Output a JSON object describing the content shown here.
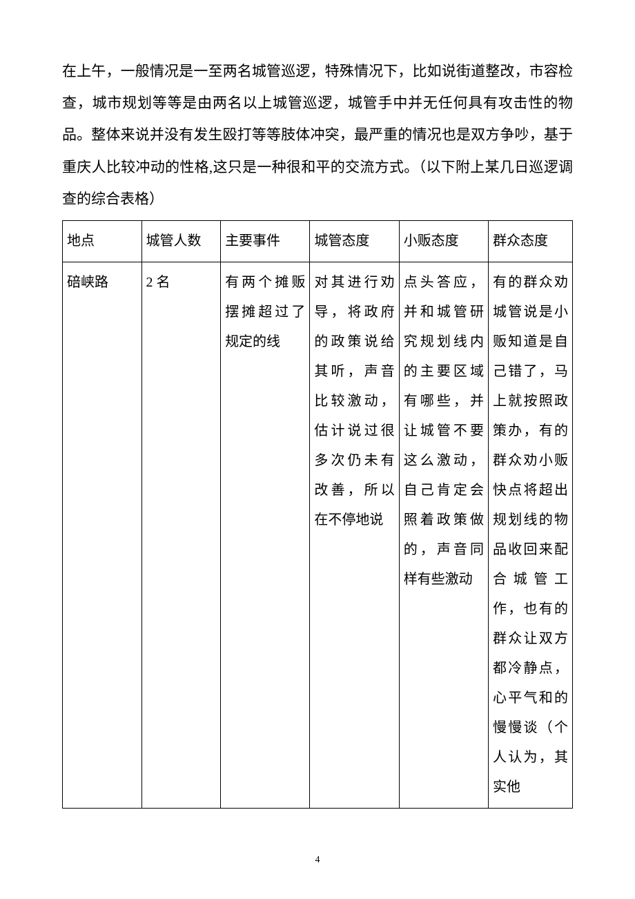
{
  "paragraph": "在上午，一般情况是一至两名城管巡逻，特殊情况下，比如说街道整改，市容检查，城市规划等等是由两名以上城管巡逻，城管手中并无任何具有攻击性的物品。整体来说并没有发生殴打等等肢体冲突，最严重的情况也是双方争吵，基于重庆人比较冲动的性格,这只是一种很和平的交流方式。（以下附上某几日巡逻调查的综合表格）",
  "table": {
    "headers": [
      "地点",
      "城管人数",
      "主要事件",
      "城管态度",
      "小贩态度",
      "群众态度"
    ],
    "row": {
      "location": "碚峡路",
      "count": "2 名",
      "event": "有两个摊贩摆摊超过了规定的线",
      "chengguan_attitude": "对其进行劝导，将政府的政策说给其听，声音比较激动，估计说过很多次仍未有改善，所以在不停地说",
      "vendor_attitude": "点头答应，并和城管研究规划线内的主要区域有哪些，并让城管不要这么激动，自己肯定会照着政策做的，声音同样有些激动",
      "public_attitude": "有的群众劝城管说是小贩知道是自己错了，马上就按照政策办，有的群众劝小贩快点将超出规划线的物品收回来配合城管工作，也有的群众让双方都冷静点，心平气和的慢慢谈（个人认为，其实他"
    }
  },
  "page_number": "4",
  "styling": {
    "background_color": "#ffffff",
    "text_color": "#000000",
    "border_color": "#000000",
    "paragraph_fontsize": 21,
    "paragraph_line_height": 2.2,
    "table_fontsize": 20,
    "table_line_height": 2.15,
    "page_number_fontsize": 14,
    "font_family": "SimSun",
    "column_widths_pct": [
      15.5,
      15.5,
      17.5,
      17.5,
      17.5,
      16.5
    ]
  }
}
